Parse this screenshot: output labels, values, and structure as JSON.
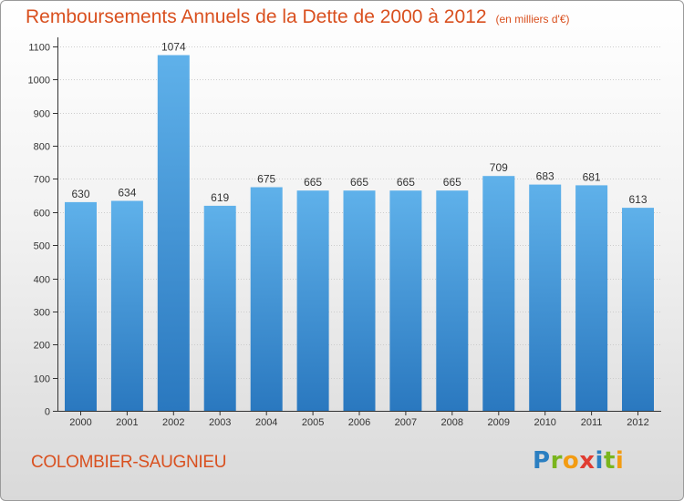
{
  "title": "Remboursements Annuels de la Dette de 2000 à 2012",
  "unit": "(en milliers d'€)",
  "commune": "COLOMBIER-SAUGNIEU",
  "brand": {
    "letters": [
      "P",
      "r",
      "o",
      "x",
      "i",
      "t",
      "i"
    ],
    "colors": [
      "#2b7fc1",
      "#7ab51d",
      "#f39c12",
      "#e03c31",
      "#2b7fc1",
      "#7ab51d",
      "#f39c12"
    ]
  },
  "colors": {
    "bar_top": "#5fb1ea",
    "bar_bottom": "#2a78bf",
    "title": "#d9501f",
    "grid": "#cccccc"
  },
  "chart_data": {
    "type": "bar",
    "categories": [
      "2000",
      "2001",
      "2002",
      "2003",
      "2004",
      "2005",
      "2006",
      "2007",
      "2008",
      "2009",
      "2010",
      "2011",
      "2012"
    ],
    "values": [
      630,
      634,
      1074,
      619,
      675,
      665,
      665,
      665,
      665,
      709,
      683,
      681,
      613
    ],
    "ylim": [
      0,
      1100
    ],
    "yticks": [
      0,
      100,
      200,
      300,
      400,
      500,
      600,
      700,
      800,
      900,
      1000,
      1100
    ],
    "grid": true
  }
}
